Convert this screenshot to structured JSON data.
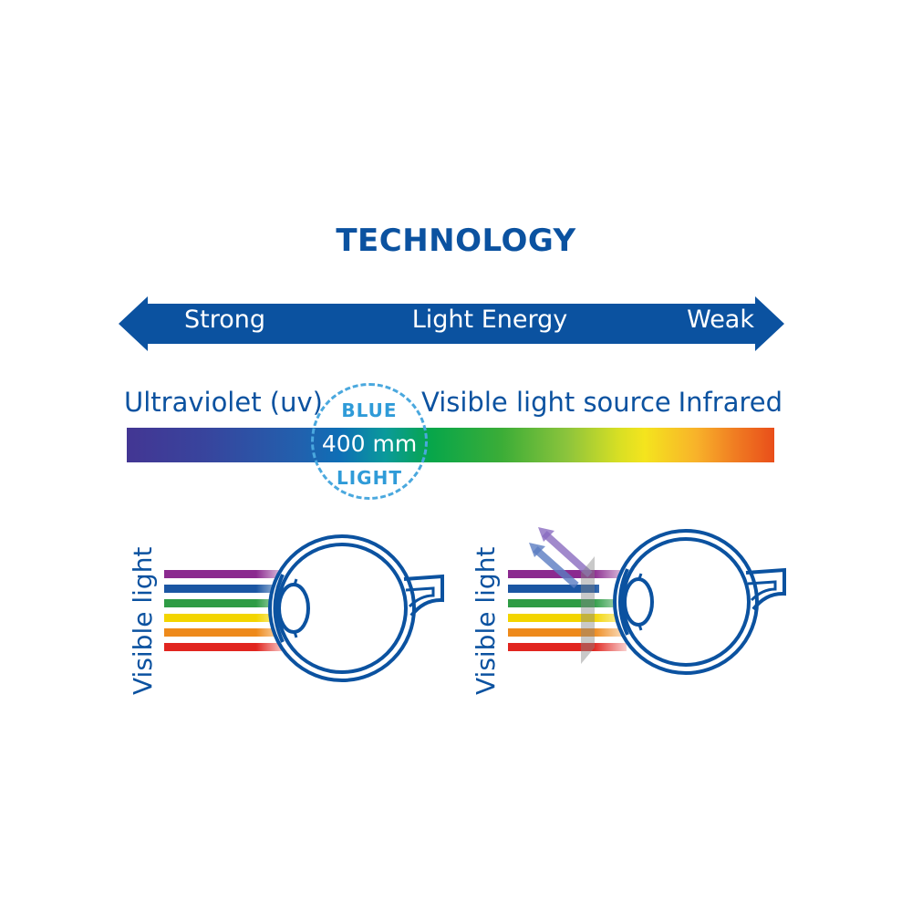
{
  "title": "TECHNOLOGY",
  "energy_arrow": {
    "left_label": "Strong",
    "center_label": "Light Energy",
    "right_label": "Weak",
    "color": "#0b52a0"
  },
  "spectrum": {
    "left_label": "Ultraviolet (uv)",
    "center_label": "Visible light source",
    "right_label": "Infrared"
  },
  "blue_light_marker": {
    "top_text": "BLUE",
    "middle_text": "400 mm",
    "bottom_text": "LIGHT",
    "color": "#4aa8de"
  },
  "panels": [
    {
      "side_label": "Visible light"
    },
    {
      "side_label": "Visible light"
    }
  ],
  "colors": {
    "primary_blue": "#0b52a0",
    "beam_colors": [
      "#8b2a8f",
      "#1b56a3",
      "#2e9c45",
      "#f3d500",
      "#ee8a1b",
      "#e1251f"
    ]
  }
}
